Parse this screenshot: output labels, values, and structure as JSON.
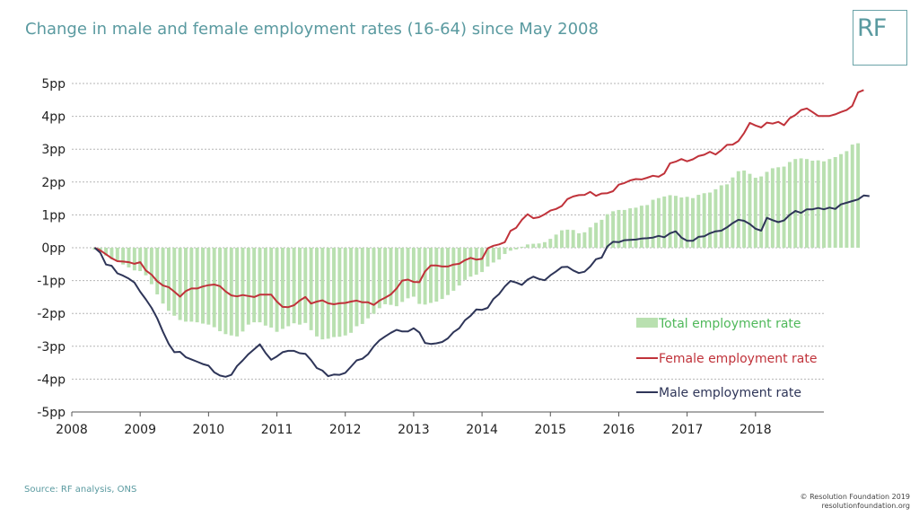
{
  "header": {
    "title": "Change in male and female employment rates (16-64) since May 2008"
  },
  "logo": {
    "text": "RF"
  },
  "footer": {
    "source": "Source: RF analysis, ONS",
    "credit_line1": "© Resolution Foundation 2019",
    "credit_line2": "resolutionfoundation.org"
  },
  "colors": {
    "total": "#b9e0b0",
    "female": "#c0323a",
    "male": "#2e3558",
    "accent": "#5a9aa0"
  },
  "chart_data": {
    "type": "bar",
    "title": "Change in male and female employment rates (16-64) since May 2008",
    "x_start": "2008-05",
    "x_end": "2018-09",
    "x_tick_labels": [
      "2008",
      "2009",
      "2010",
      "2011",
      "2012",
      "2013",
      "2014",
      "2015",
      "2016",
      "2017",
      "2018"
    ],
    "y_tick_labels": [
      "5pp",
      "4pp",
      "3pp",
      "2pp",
      "1pp",
      "0pp",
      "-1pp",
      "-2pp",
      "-3pp",
      "-4pp",
      "-5pp"
    ],
    "ylim": [
      -5,
      5
    ],
    "grid": true,
    "legend_position": "right",
    "series": [
      {
        "name": "Total employment rate",
        "type": "bar",
        "values": [
          -0.06,
          -0.11,
          -0.24,
          -0.35,
          -0.42,
          -0.51,
          -0.6,
          -0.69,
          -0.71,
          -0.84,
          -1.11,
          -1.42,
          -1.7,
          -1.92,
          -2.07,
          -2.2,
          -2.25,
          -2.25,
          -2.27,
          -2.31,
          -2.34,
          -2.42,
          -2.54,
          -2.63,
          -2.67,
          -2.7,
          -2.55,
          -2.34,
          -2.27,
          -2.27,
          -2.37,
          -2.43,
          -2.56,
          -2.47,
          -2.39,
          -2.3,
          -2.34,
          -2.29,
          -2.51,
          -2.7,
          -2.79,
          -2.77,
          -2.72,
          -2.71,
          -2.67,
          -2.59,
          -2.39,
          -2.32,
          -2.15,
          -2.01,
          -1.84,
          -1.72,
          -1.74,
          -1.78,
          -1.65,
          -1.54,
          -1.49,
          -1.71,
          -1.73,
          -1.68,
          -1.64,
          -1.56,
          -1.44,
          -1.31,
          -1.15,
          -0.98,
          -0.88,
          -0.82,
          -0.74,
          -0.57,
          -0.45,
          -0.36,
          -0.19,
          -0.09,
          -0.05,
          0.03,
          0.1,
          0.12,
          0.13,
          0.17,
          0.27,
          0.4,
          0.53,
          0.55,
          0.54,
          0.44,
          0.47,
          0.62,
          0.76,
          0.85,
          1.02,
          1.11,
          1.15,
          1.15,
          1.2,
          1.22,
          1.28,
          1.3,
          1.46,
          1.51,
          1.56,
          1.6,
          1.58,
          1.53,
          1.55,
          1.51,
          1.61,
          1.66,
          1.68,
          1.78,
          1.9,
          1.93,
          2.14,
          2.33,
          2.35,
          2.25,
          2.13,
          2.17,
          2.31,
          2.42,
          2.45,
          2.47,
          2.61,
          2.7,
          2.72,
          2.7,
          2.65,
          2.66,
          2.63,
          2.7,
          2.76,
          2.85,
          2.94,
          3.14,
          3.18
        ]
      },
      {
        "name": "Female employment rate",
        "type": "line",
        "values": [
          0.0,
          -0.08,
          -0.2,
          -0.32,
          -0.41,
          -0.42,
          -0.44,
          -0.49,
          -0.44,
          -0.69,
          -0.82,
          -1.02,
          -1.15,
          -1.2,
          -1.34,
          -1.49,
          -1.32,
          -1.24,
          -1.24,
          -1.18,
          -1.14,
          -1.12,
          -1.17,
          -1.33,
          -1.45,
          -1.48,
          -1.44,
          -1.47,
          -1.5,
          -1.43,
          -1.43,
          -1.43,
          -1.64,
          -1.8,
          -1.81,
          -1.75,
          -1.61,
          -1.5,
          -1.7,
          -1.64,
          -1.6,
          -1.69,
          -1.72,
          -1.69,
          -1.68,
          -1.64,
          -1.61,
          -1.66,
          -1.66,
          -1.74,
          -1.61,
          -1.52,
          -1.42,
          -1.24,
          -1.0,
          -0.97,
          -1.04,
          -1.05,
          -0.72,
          -0.54,
          -0.54,
          -0.57,
          -0.57,
          -0.51,
          -0.49,
          -0.38,
          -0.31,
          -0.36,
          -0.34,
          -0.02,
          0.06,
          0.1,
          0.17,
          0.51,
          0.61,
          0.85,
          1.02,
          0.9,
          0.93,
          1.02,
          1.13,
          1.18,
          1.27,
          1.48,
          1.56,
          1.6,
          1.61,
          1.7,
          1.58,
          1.65,
          1.66,
          1.72,
          1.92,
          1.97,
          2.05,
          2.09,
          2.08,
          2.13,
          2.19,
          2.16,
          2.26,
          2.57,
          2.62,
          2.7,
          2.63,
          2.69,
          2.79,
          2.83,
          2.92,
          2.84,
          2.97,
          3.13,
          3.14,
          3.25,
          3.49,
          3.8,
          3.72,
          3.66,
          3.81,
          3.78,
          3.83,
          3.73,
          3.94,
          4.04,
          4.19,
          4.24,
          4.13,
          4.01,
          4.01,
          4.01,
          4.06,
          4.13,
          4.19,
          4.32,
          4.73,
          4.8
        ]
      },
      {
        "name": "Male employment rate",
        "type": "line",
        "values": [
          0.0,
          -0.15,
          -0.51,
          -0.55,
          -0.78,
          -0.85,
          -0.94,
          -1.06,
          -1.34,
          -1.57,
          -1.83,
          -2.15,
          -2.56,
          -2.92,
          -3.18,
          -3.17,
          -3.33,
          -3.4,
          -3.47,
          -3.54,
          -3.59,
          -3.79,
          -3.89,
          -3.93,
          -3.87,
          -3.6,
          -3.43,
          -3.24,
          -3.09,
          -2.94,
          -3.2,
          -3.41,
          -3.31,
          -3.18,
          -3.14,
          -3.14,
          -3.21,
          -3.23,
          -3.42,
          -3.66,
          -3.74,
          -3.91,
          -3.86,
          -3.87,
          -3.81,
          -3.62,
          -3.43,
          -3.38,
          -3.24,
          -3.0,
          -2.82,
          -2.7,
          -2.59,
          -2.5,
          -2.55,
          -2.55,
          -2.45,
          -2.58,
          -2.9,
          -2.93,
          -2.91,
          -2.87,
          -2.76,
          -2.57,
          -2.45,
          -2.21,
          -2.07,
          -1.88,
          -1.89,
          -1.83,
          -1.56,
          -1.41,
          -1.18,
          -1.01,
          -1.06,
          -1.13,
          -0.97,
          -0.88,
          -0.95,
          -0.99,
          -0.84,
          -0.72,
          -0.59,
          -0.58,
          -0.69,
          -0.77,
          -0.73,
          -0.57,
          -0.35,
          -0.3,
          0.04,
          0.18,
          0.17,
          0.23,
          0.24,
          0.25,
          0.28,
          0.29,
          0.31,
          0.36,
          0.32,
          0.44,
          0.5,
          0.31,
          0.21,
          0.21,
          0.33,
          0.35,
          0.44,
          0.5,
          0.52,
          0.62,
          0.75,
          0.85,
          0.82,
          0.72,
          0.58,
          0.52,
          0.91,
          0.84,
          0.78,
          0.83,
          1.0,
          1.12,
          1.06,
          1.17,
          1.17,
          1.21,
          1.17,
          1.22,
          1.18,
          1.32,
          1.37,
          1.42,
          1.47,
          1.59,
          1.57
        ]
      }
    ]
  }
}
